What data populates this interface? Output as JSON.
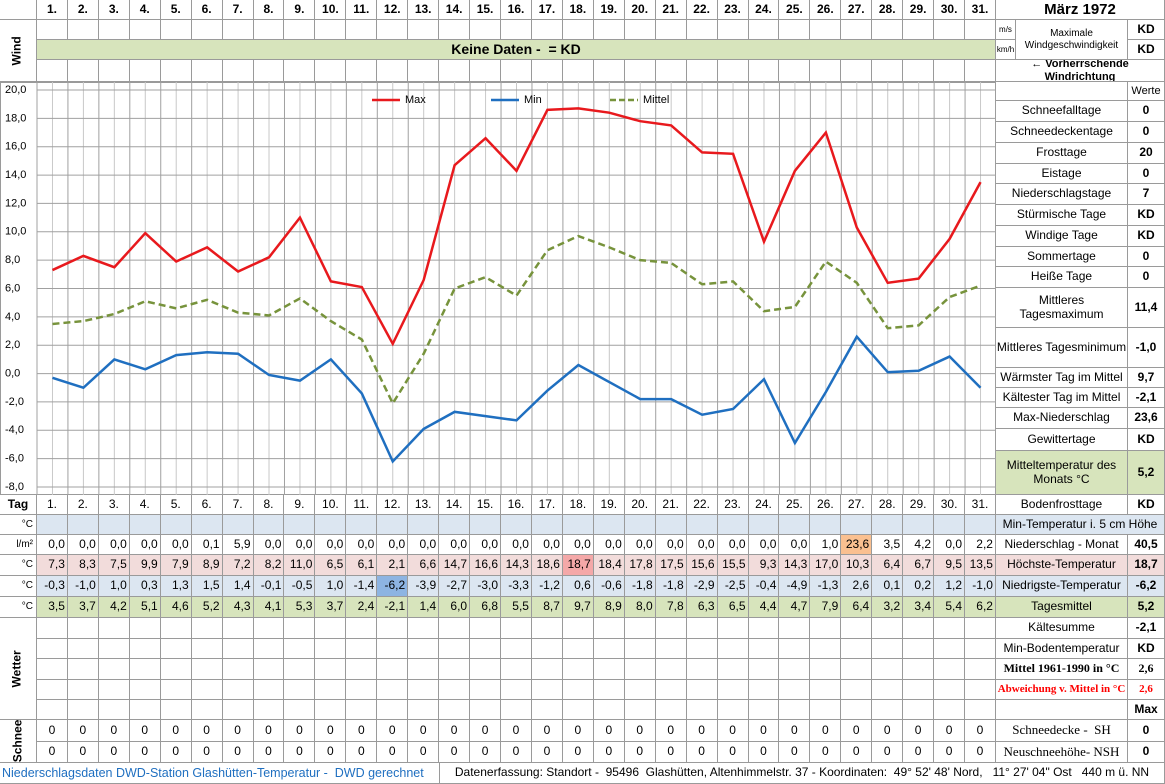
{
  "header": {
    "title": "März 1972",
    "wind_label": "Wind",
    "no_data": "Keine Daten -  = KD",
    "unit_ms": "m/s",
    "unit_kmh": "km/h",
    "wind_max_label": "Maximale Windgeschwindigkeit",
    "wind_ms_value": "KD",
    "wind_kmh_value": "KD",
    "wind_direction": "← Vorherrschende Windrichtung"
  },
  "chart_data": {
    "type": "line",
    "categories": [
      "1.",
      "2.",
      "3.",
      "4.",
      "5.",
      "6.",
      "7.",
      "8.",
      "9.",
      "10.",
      "11.",
      "12.",
      "13.",
      "14.",
      "15.",
      "16.",
      "17.",
      "18.",
      "19.",
      "20.",
      "21.",
      "22.",
      "23.",
      "24.",
      "25.",
      "26.",
      "27.",
      "28.",
      "29.",
      "30.",
      "31."
    ],
    "ylim": [
      -8,
      20
    ],
    "yticks": [
      {
        "value": -8,
        "label": "-8,0"
      },
      {
        "value": -6,
        "label": "-6,0"
      },
      {
        "value": -4,
        "label": "-4,0"
      },
      {
        "value": -2,
        "label": "-2,0"
      },
      {
        "value": 0,
        "label": "0,0"
      },
      {
        "value": 2,
        "label": "2,0"
      },
      {
        "value": 4,
        "label": "4,0"
      },
      {
        "value": 6,
        "label": "6,0"
      },
      {
        "value": 8,
        "label": "8,0"
      },
      {
        "value": 10,
        "label": "10,0"
      },
      {
        "value": 12,
        "label": "12,0"
      },
      {
        "value": 14,
        "label": "14,0"
      },
      {
        "value": 16,
        "label": "16,0"
      },
      {
        "value": 18,
        "label": "18,0"
      },
      {
        "value": 20,
        "label": "20,0"
      }
    ],
    "grid": true,
    "series": [
      {
        "name": "Max",
        "color": "#e8191d",
        "highlight": "max",
        "highlight_color": "#f4a8a8",
        "values": [
          7.3,
          8.3,
          7.5,
          9.9,
          7.9,
          8.9,
          7.2,
          8.2,
          11.0,
          6.5,
          6.1,
          2.1,
          6.6,
          14.7,
          16.6,
          14.3,
          18.6,
          18.7,
          18.4,
          17.8,
          17.5,
          15.6,
          15.5,
          9.3,
          14.3,
          17.0,
          10.3,
          6.4,
          6.7,
          9.5,
          13.5
        ],
        "value_labels": [
          "7,3",
          "8,3",
          "7,5",
          "9,9",
          "7,9",
          "8,9",
          "7,2",
          "8,2",
          "11,0",
          "6,5",
          "6,1",
          "2,1",
          "6,6",
          "14,7",
          "16,6",
          "14,3",
          "18,6",
          "18,7",
          "18,4",
          "17,8",
          "17,5",
          "15,6",
          "15,5",
          "9,3",
          "14,3",
          "17,0",
          "10,3",
          "6,4",
          "6,7",
          "9,5",
          "13,5"
        ]
      },
      {
        "name": "Min",
        "color": "#1f6fc0",
        "highlight": "min",
        "highlight_color": "#8db4e2",
        "values": [
          -0.3,
          -1.0,
          1.0,
          0.3,
          1.3,
          1.5,
          1.4,
          -0.1,
          -0.5,
          1.0,
          -1.4,
          -6.2,
          -3.9,
          -2.7,
          -3.0,
          -3.3,
          -1.2,
          0.6,
          -0.6,
          -1.8,
          -1.8,
          -2.9,
          -2.5,
          -0.4,
          -4.9,
          -1.3,
          2.6,
          0.1,
          0.2,
          1.2,
          -1.0
        ],
        "value_labels": [
          "-0,3",
          "-1,0",
          "1,0",
          "0,3",
          "1,3",
          "1,5",
          "1,4",
          "-0,1",
          "-0,5",
          "1,0",
          "-1,4",
          "-6,2",
          "-3,9",
          "-2,7",
          "-3,0",
          "-3,3",
          "-1,2",
          "0,6",
          "-0,6",
          "-1,8",
          "-1,8",
          "-2,9",
          "-2,5",
          "-0,4",
          "-4,9",
          "-1,3",
          "2,6",
          "0,1",
          "0,2",
          "1,2",
          "-1,0"
        ]
      },
      {
        "name": "Mittel",
        "color": "#77933c",
        "dashed": true,
        "values": [
          3.5,
          3.7,
          4.2,
          5.1,
          4.6,
          5.2,
          4.3,
          4.1,
          5.3,
          3.7,
          2.4,
          -2.1,
          1.4,
          6.0,
          6.8,
          5.5,
          8.7,
          9.7,
          8.9,
          8.0,
          7.8,
          6.3,
          6.5,
          4.4,
          4.7,
          7.9,
          6.4,
          3.2,
          3.4,
          5.4,
          6.2
        ],
        "value_labels": [
          "3,5",
          "3,7",
          "4,2",
          "5,1",
          "4,6",
          "5,2",
          "4,3",
          "4,1",
          "5,3",
          "3,7",
          "2,4",
          "-2,1",
          "1,4",
          "6,0",
          "6,8",
          "5,5",
          "8,7",
          "9,7",
          "8,9",
          "8,0",
          "7,8",
          "6,3",
          "6,5",
          "4,4",
          "4,7",
          "7,9",
          "6,4",
          "3,2",
          "3,4",
          "5,4",
          "6,2"
        ]
      }
    ]
  },
  "stats": {
    "header": "Werte",
    "rows": [
      {
        "label": "Schneefalltage",
        "value": "0"
      },
      {
        "label": "Schneedeckentage",
        "value": "0"
      },
      {
        "label": "Frosttage",
        "value": "20"
      },
      {
        "label": "Eistage",
        "value": "0"
      },
      {
        "label": "Niederschlagstage",
        "value": "7"
      },
      {
        "label": "Stürmische Tage",
        "value": "KD"
      },
      {
        "label": "Windige Tage",
        "value": "KD"
      },
      {
        "label": "Sommertage",
        "value": "0"
      },
      {
        "label": "Heiße Tage",
        "value": "0"
      },
      {
        "label": "Mittleres Tagesmaximum",
        "value": "11,4"
      },
      {
        "label": "Mittleres Tagesminimum",
        "value": "-1,0"
      },
      {
        "label": "Wärmster Tag im Mittel",
        "value": "9,7"
      },
      {
        "label": "Kältester Tag im Mittel",
        "value": "-2,1"
      },
      {
        "label": "Max-Niederschlag",
        "value": "23,6"
      },
      {
        "label": "Gewittertage",
        "value": "KD"
      },
      {
        "label": "Mitteltemperatur des Monats °C",
        "value": "5,2",
        "bg": "#d7e4bc"
      },
      {
        "label": "Bodenfrosttage",
        "value": "KD"
      }
    ]
  },
  "table": {
    "day_label": "Tag",
    "rows": [
      {
        "unit": "°C",
        "label": "Min-Temperatur i. 5 cm Höhe",
        "bg": "#dce6f1"
      },
      {
        "unit": "l/m²",
        "label": "Niederschlag - Monat",
        "total": "40,5",
        "highlight": "max",
        "highlight_color": "#fac090",
        "cells": [
          "0,0",
          "0,0",
          "0,0",
          "0,0",
          "0,0",
          "0,1",
          "5,9",
          "0,0",
          "0,0",
          "0,0",
          "0,0",
          "0,0",
          "0,0",
          "0,0",
          "0,0",
          "0,0",
          "0,0",
          "0,0",
          "0,0",
          "0,0",
          "0,0",
          "0,0",
          "0,0",
          "0,0",
          "0,0",
          "1,0",
          "23,6",
          "3,5",
          "4,2",
          "0,0",
          "2,2"
        ]
      },
      {
        "unit": "°C",
        "label": "Höchste-Temperatur",
        "total": "18,7",
        "bg": "#f2dcdb"
      },
      {
        "unit": "°C",
        "label": "Niedrigste-Temperatur",
        "total": "-6,2",
        "bg": "#dce6f1"
      },
      {
        "unit": "°C",
        "label": "Tagesmittel",
        "total": "5,2",
        "bg": "#d7e4bc"
      }
    ],
    "weather_label": "Wetter",
    "weather_rows": [
      {
        "label": "Kältesumme",
        "value": "-2,1"
      },
      {
        "label": "Min-Bodentemperatur",
        "value": "KD"
      },
      {
        "label": "Mittel 1961-1990 in °C",
        "value": "2,6",
        "bold": true
      },
      {
        "label": "Abweichung v. Mittel in °C",
        "value": "2,6",
        "bold": true,
        "color": "#ff0000"
      },
      {
        "value": "Max"
      }
    ],
    "snow_label": "Schnee",
    "snow_rows": [
      {
        "label": "Schneedecke -  SH",
        "total": "0",
        "cells": [
          0,
          0,
          0,
          0,
          0,
          0,
          0,
          0,
          0,
          0,
          0,
          0,
          0,
          0,
          0,
          0,
          0,
          0,
          0,
          0,
          0,
          0,
          0,
          0,
          0,
          0,
          0,
          0,
          0,
          0,
          0
        ]
      },
      {
        "label": "Neuschneehöhe- NSH",
        "total": "0",
        "cells": [
          0,
          0,
          0,
          0,
          0,
          0,
          0,
          0,
          0,
          0,
          0,
          0,
          0,
          0,
          0,
          0,
          0,
          0,
          0,
          0,
          0,
          0,
          0,
          0,
          0,
          0,
          0,
          0,
          0,
          0,
          0
        ]
      }
    ]
  },
  "footer": {
    "left": "Niederschlagsdaten DWD-Station Glashütten-Temperatur -  DWD gerechnet",
    "right": "Datenerfassung: Standort -  95496  Glashütten, Altenhimmelstr. 37 - Koordinaten:  49° 52' 48' Nord,   11° 27' 04\" Ost   440 m ü. NN"
  }
}
